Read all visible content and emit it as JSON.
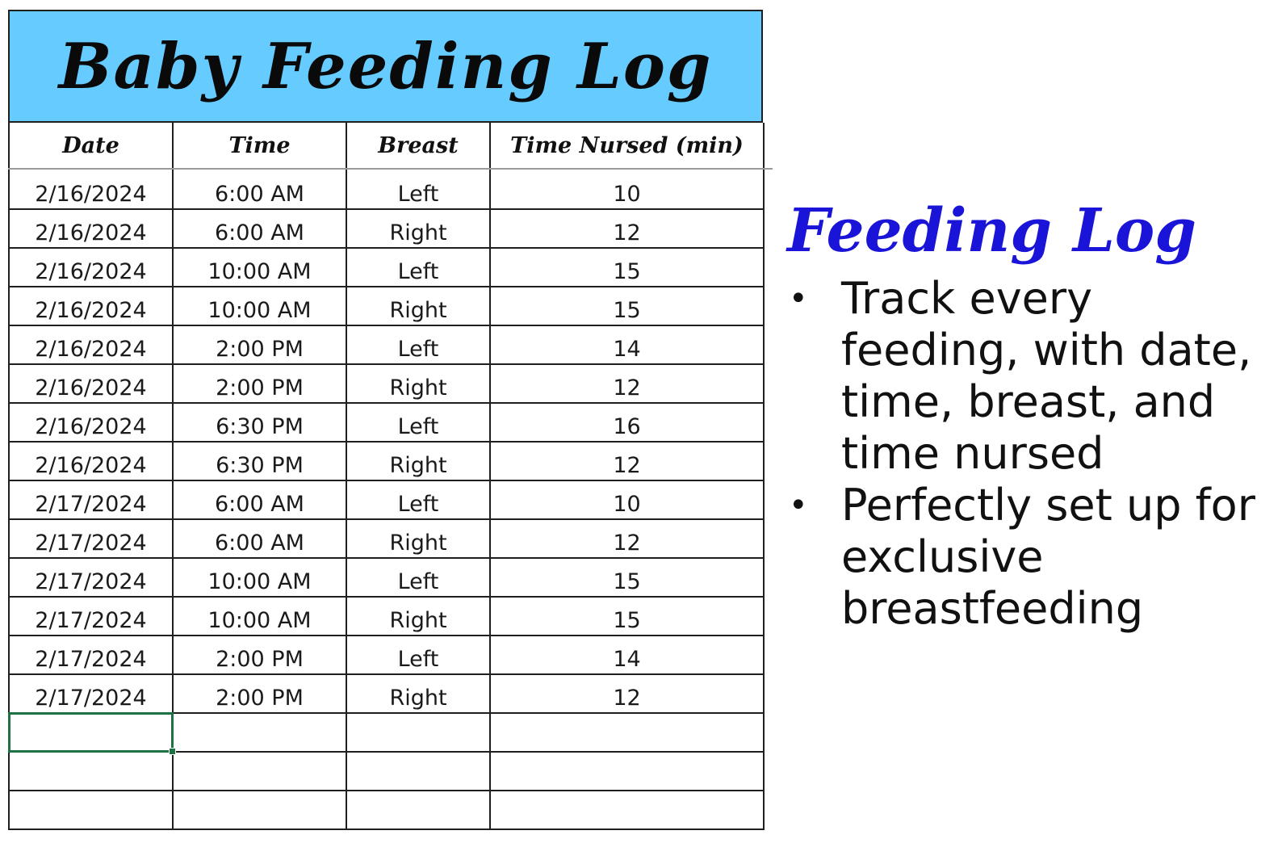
{
  "sheet": {
    "title": "Baby Feeding Log",
    "banner_color": "#66ccff",
    "headers": {
      "date": "Date",
      "time": "Time",
      "breast": "Breast",
      "minutes": "Time Nursed (min)"
    },
    "rows": [
      {
        "date": "2/16/2024",
        "time": "6:00 AM",
        "breast": "Left",
        "minutes": "10"
      },
      {
        "date": "2/16/2024",
        "time": "6:00 AM",
        "breast": "Right",
        "minutes": "12"
      },
      {
        "date": "2/16/2024",
        "time": "10:00 AM",
        "breast": "Left",
        "minutes": "15"
      },
      {
        "date": "2/16/2024",
        "time": "10:00 AM",
        "breast": "Right",
        "minutes": "15"
      },
      {
        "date": "2/16/2024",
        "time": "2:00 PM",
        "breast": "Left",
        "minutes": "14"
      },
      {
        "date": "2/16/2024",
        "time": "2:00 PM",
        "breast": "Right",
        "minutes": "12"
      },
      {
        "date": "2/16/2024",
        "time": "6:30 PM",
        "breast": "Left",
        "minutes": "16"
      },
      {
        "date": "2/16/2024",
        "time": "6:30 PM",
        "breast": "Right",
        "minutes": "12"
      },
      {
        "date": "2/17/2024",
        "time": "6:00 AM",
        "breast": "Left",
        "minutes": "10"
      },
      {
        "date": "2/17/2024",
        "time": "6:00 AM",
        "breast": "Right",
        "minutes": "12"
      },
      {
        "date": "2/17/2024",
        "time": "10:00 AM",
        "breast": "Left",
        "minutes": "15"
      },
      {
        "date": "2/17/2024",
        "time": "10:00 AM",
        "breast": "Right",
        "minutes": "15"
      },
      {
        "date": "2/17/2024",
        "time": "2:00 PM",
        "breast": "Left",
        "minutes": "14"
      },
      {
        "date": "2/17/2024",
        "time": "2:00 PM",
        "breast": "Right",
        "minutes": "12"
      }
    ],
    "empty_row_count": 3,
    "selection_color": "#1e7145"
  },
  "side": {
    "title": "Feeding Log",
    "title_color": "#1a14d8",
    "bullet_glyph": "•",
    "bullets": [
      "Track every feeding, with date, time, breast, and time nursed",
      "Perfectly set up for exclusive breastfeeding"
    ]
  }
}
